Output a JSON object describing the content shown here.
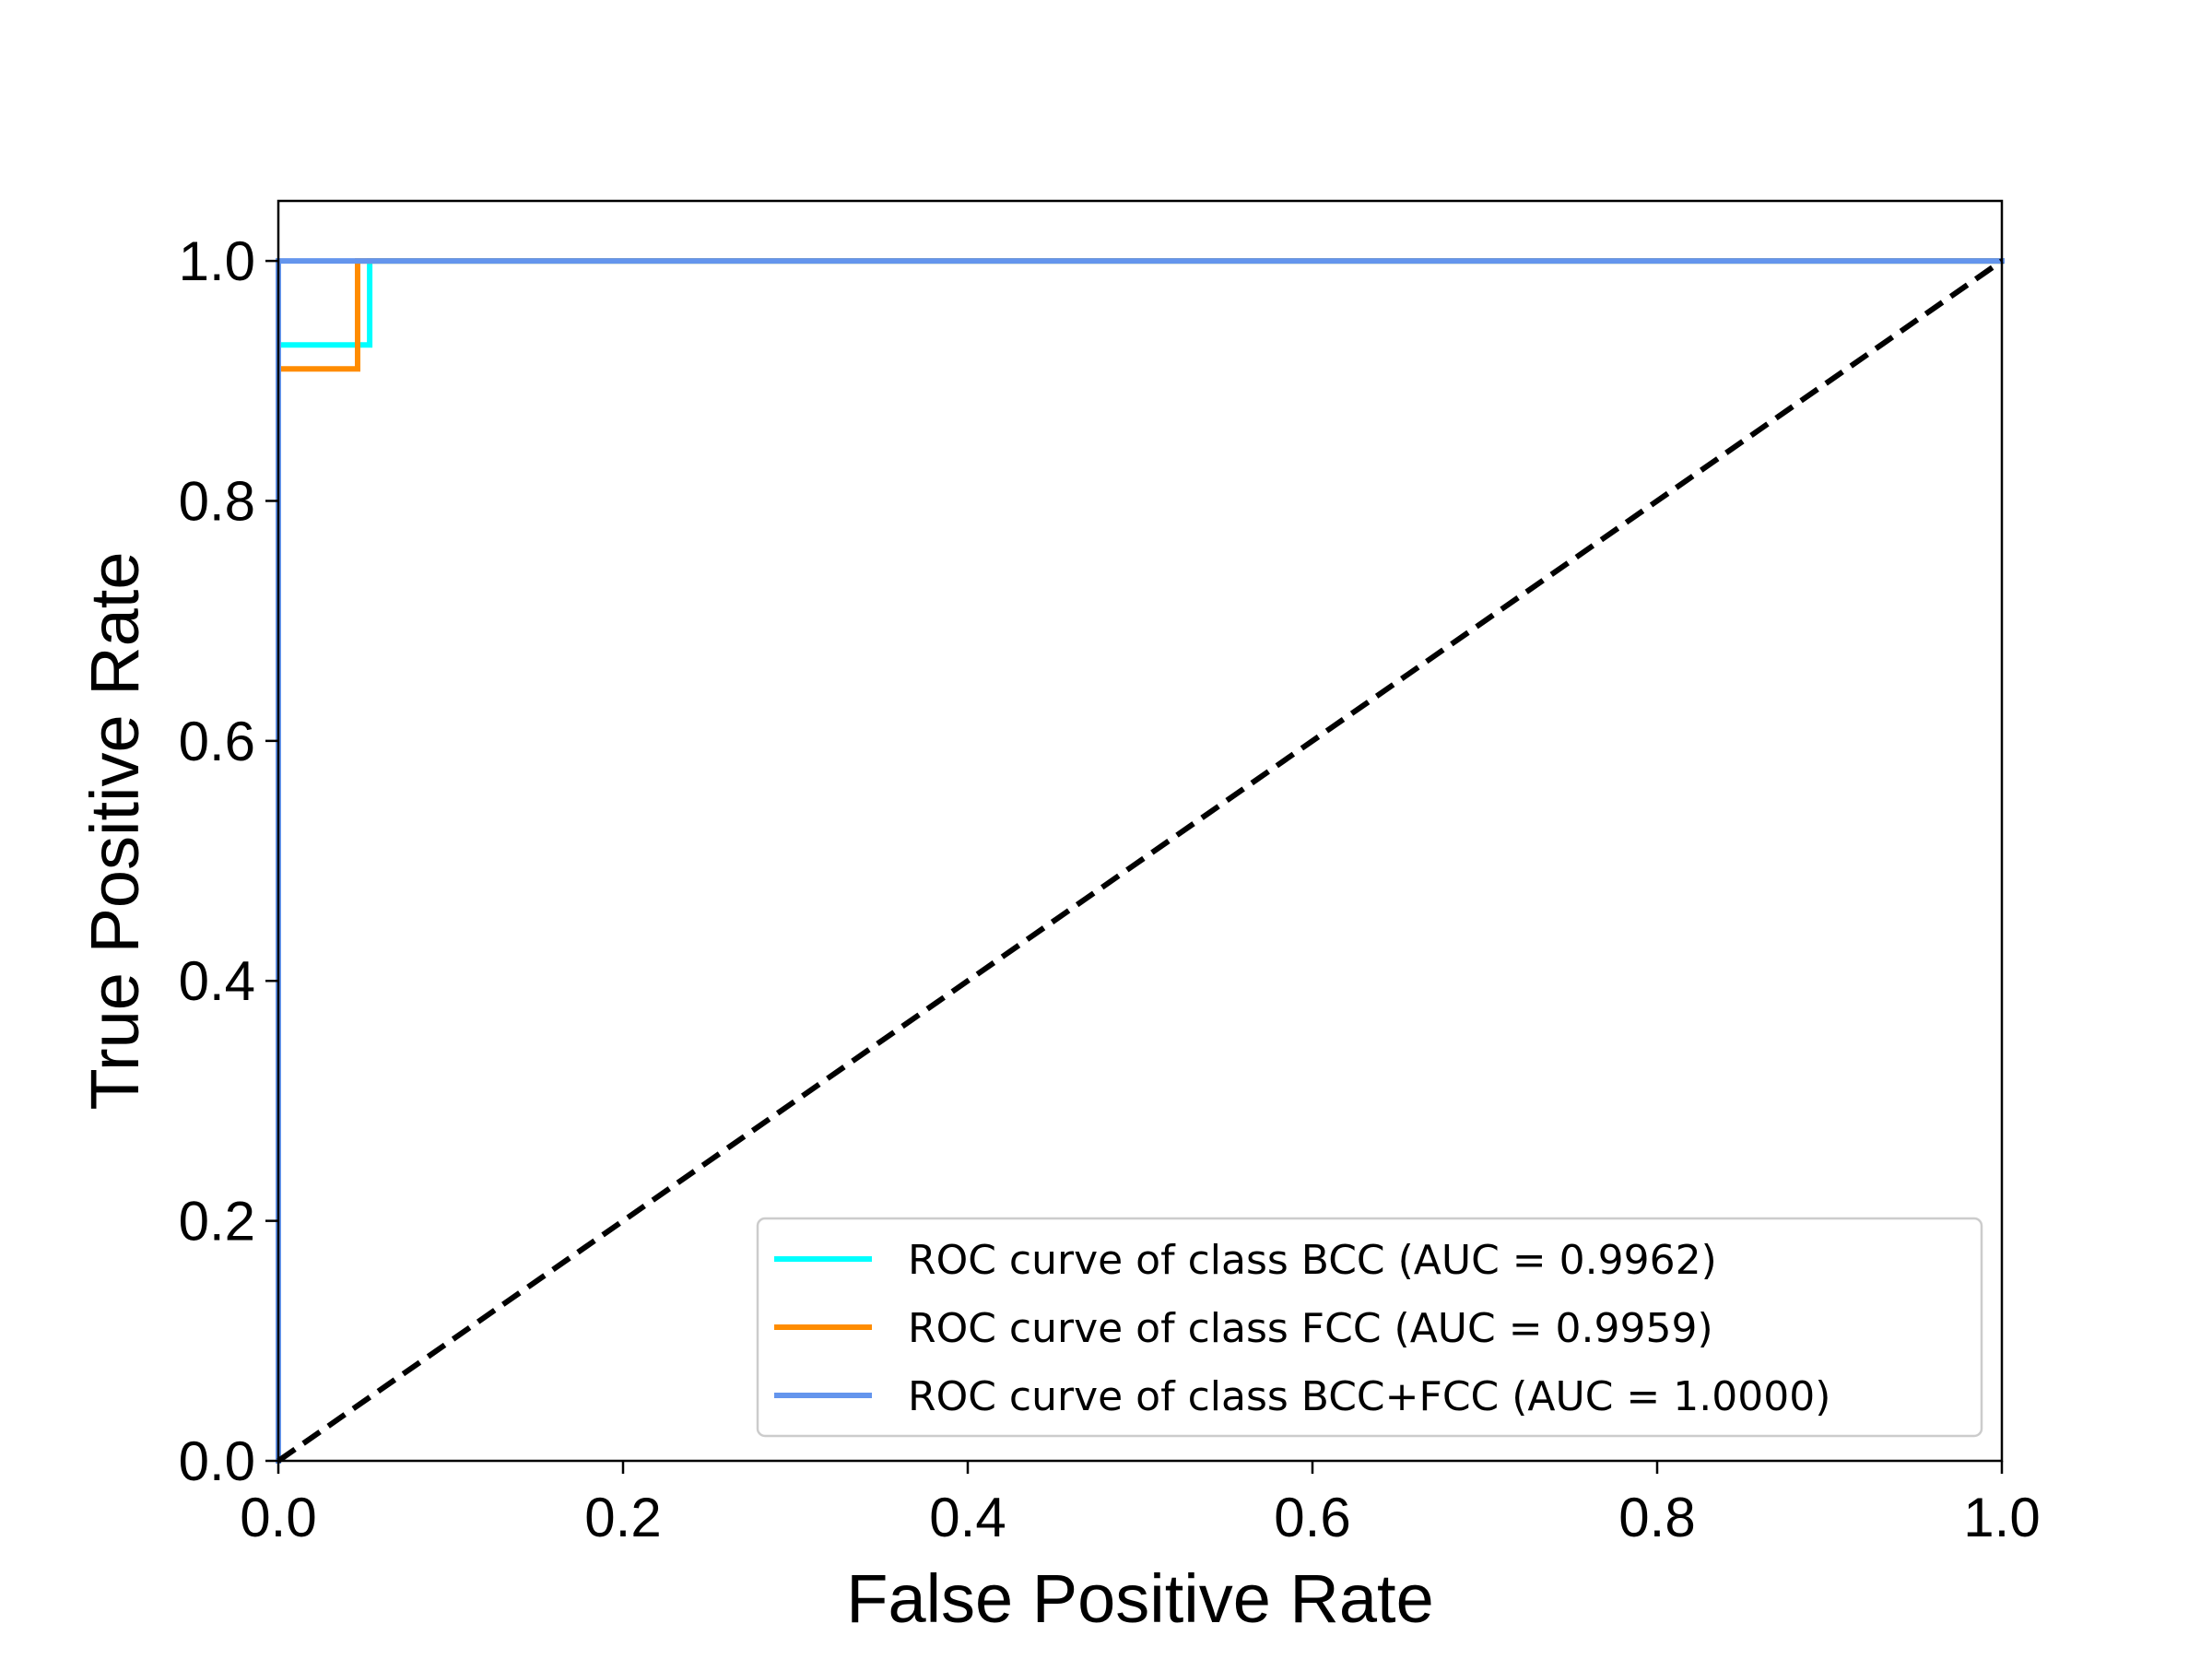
{
  "chart_data": {
    "type": "line",
    "title": "",
    "xlabel": "False Positive Rate",
    "ylabel": "True Positive Rate",
    "xlim": [
      0.0,
      1.0
    ],
    "ylim": [
      0.0,
      1.05
    ],
    "xticks": [
      0.0,
      0.2,
      0.4,
      0.6,
      0.8,
      1.0
    ],
    "yticks": [
      0.0,
      0.2,
      0.4,
      0.6,
      0.8,
      1.0
    ],
    "xtick_labels": [
      "0.0",
      "0.2",
      "0.4",
      "0.6",
      "0.8",
      "1.0"
    ],
    "ytick_labels": [
      "0.0",
      "0.2",
      "0.4",
      "0.6",
      "0.8",
      "1.0"
    ],
    "grid": false,
    "legend_position": "lower-right",
    "series": [
      {
        "name": "ROC curve of class BCC (AUC = 0.9962)",
        "color": "#00FFFF",
        "x": [
          0.0,
          0.0,
          0.053,
          0.053,
          1.0
        ],
        "y": [
          0.0,
          0.93,
          0.93,
          1.0,
          1.0
        ]
      },
      {
        "name": "ROC curve of class FCC (AUC = 0.9959)",
        "color": "#FF8C00",
        "x": [
          0.0,
          0.0,
          0.046,
          0.046,
          1.0
        ],
        "y": [
          0.0,
          0.91,
          0.91,
          1.0,
          1.0
        ]
      },
      {
        "name": "ROC curve of class BCC+FCC (AUC = 1.0000)",
        "color": "#6495ED",
        "x": [
          0.0,
          0.0,
          1.0
        ],
        "y": [
          0.0,
          1.0,
          1.0
        ]
      }
    ],
    "reference_line": {
      "x": [
        0.0,
        1.0
      ],
      "y": [
        0.0,
        1.0
      ],
      "color": "#000000",
      "style": "dashed"
    }
  }
}
